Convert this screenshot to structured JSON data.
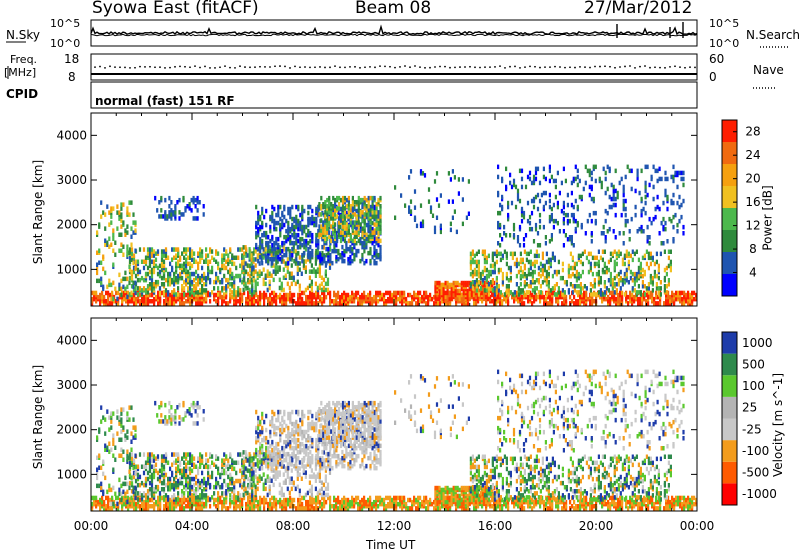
{
  "header": {
    "station": "Syowa East (fitACF)",
    "beam": "Beam 08",
    "date": "27/Mar/2012"
  },
  "noise_panel": {
    "left_label": "N.Sky",
    "right_label": "N.Search",
    "left_ticks": [
      "10^5",
      "10^0"
    ],
    "right_ticks": [
      "10^5",
      "10^0"
    ]
  },
  "freq_panel": {
    "left_label_line1": "Freq.",
    "left_label_line2": "[MHz]",
    "left_ticks": [
      "18",
      "8"
    ],
    "right_label": "Nave",
    "right_ticks": [
      "60",
      "0"
    ]
  },
  "cpid_panel": {
    "label": "CPID",
    "program": "normal (fast) 151 RF"
  },
  "colors": {
    "axis": "#000000",
    "power": [
      "#0000ff",
      "#1f55b0",
      "#2f8a3c",
      "#4cb84c",
      "#f0c020",
      "#f5a00f",
      "#f06a10",
      "#ff1e00"
    ],
    "velocity": [
      "#ff0000",
      "#ff5a00",
      "#f39c1c",
      "#c8c8c8",
      "#b4b4b4",
      "#5ac82e",
      "#2e8a4c",
      "#1e3caa"
    ]
  },
  "chart_data": [
    {
      "type": "heatmap",
      "name": "power",
      "ylabel": "Slant Range [km]",
      "xlabel": "",
      "y_ticks": [
        "1000",
        "2000",
        "3000",
        "4000"
      ],
      "ylim": [
        180,
        4500
      ],
      "x_ticks": [
        "00:00",
        "04:00",
        "08:00",
        "12:00",
        "16:00",
        "20:00",
        "00:00"
      ],
      "xlim_hours": [
        0,
        24
      ],
      "colorbar_label": "Power [dB]",
      "colorbar_ticks": [
        "4",
        "8",
        "12",
        "16",
        "20",
        "24",
        "28"
      ],
      "colorbar_range": [
        0,
        30
      ]
    },
    {
      "type": "heatmap",
      "name": "velocity",
      "ylabel": "Slant Range [km]",
      "xlabel": "Time UT",
      "y_ticks": [
        "1000",
        "2000",
        "3000",
        "4000"
      ],
      "ylim": [
        180,
        4500
      ],
      "x_ticks": [
        "00:00",
        "04:00",
        "08:00",
        "12:00",
        "16:00",
        "20:00",
        "00:00"
      ],
      "xlim_hours": [
        0,
        24
      ],
      "colorbar_label": "Velocity [m s^-1]",
      "colorbar_ticks": [
        "1000",
        "500",
        "100",
        "25",
        "-25",
        "-100",
        "-500",
        "-1000"
      ]
    }
  ]
}
